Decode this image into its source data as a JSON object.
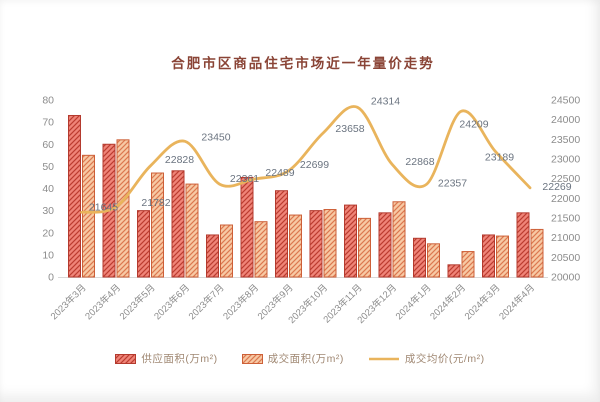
{
  "title": "合肥市区商品住宅市场近一年量价走势",
  "legend": {
    "items": [
      {
        "label": "供应面积(万m²)",
        "swatch": "hatched-bar-red"
      },
      {
        "label": "成交面积(万m²)",
        "swatch": "hatched-bar-orange"
      },
      {
        "label": "成交均价(元/m²)",
        "swatch": "line-gold"
      }
    ]
  },
  "colors": {
    "supply_bg": "#ef8478",
    "supply_hatch": "#bc3c30",
    "supply_stroke": "#b43a2e",
    "transaction_bg": "#f7c9a4",
    "transaction_hatch": "#dc7850",
    "transaction_stroke": "#cd6038",
    "price_line": "#e9b45c",
    "axis_text": "#8c8c8c",
    "point_label": "#6b7480",
    "axis_line": "#d9d9d9",
    "title_text": "#8a4436",
    "legend_text": "#a08873"
  },
  "chart_data": {
    "type": "bar",
    "subtype": "grouped-bars-with-line-overlay",
    "title": "合肥市区商品住宅市场近一年量价走势",
    "categories": [
      "2023年3月",
      "2023年4月",
      "2023年5月",
      "2023年6月",
      "2023年7月",
      "2023年8月",
      "2023年9月",
      "2023年10月",
      "2023年11月",
      "2023年12月",
      "2024年1月",
      "2024年2月",
      "2024年3月",
      "2024年4月"
    ],
    "series": [
      {
        "name": "供应面积(万m²)",
        "type": "bar",
        "axis": "left",
        "values": [
          73,
          60,
          30,
          48,
          19,
          45,
          39,
          30,
          32.5,
          29,
          17.5,
          5.5,
          19,
          29
        ]
      },
      {
        "name": "成交面积(万m²)",
        "type": "bar",
        "axis": "left",
        "values": [
          55,
          62,
          47,
          42,
          23.5,
          25,
          28,
          30.5,
          26.5,
          34,
          15,
          11.5,
          18.5,
          21.5
        ]
      },
      {
        "name": "成交均价(元/m²)",
        "type": "line",
        "axis": "right",
        "values": [
          21645,
          21782,
          22828,
          23450,
          22361,
          22489,
          22699,
          23658,
          24314,
          22868,
          22357,
          24209,
          23189,
          22269
        ],
        "point_labels": [
          "21645",
          "21782",
          "22828",
          "23450",
          "22361",
          "22489",
          "22699",
          "23658",
          "24314",
          "22868",
          "22357",
          "24209",
          "23189",
          "22269"
        ]
      }
    ],
    "left_axis": {
      "min": 0,
      "max": 80,
      "step": 10
    },
    "right_axis": {
      "min": 20000,
      "max": 24500,
      "step": 500
    },
    "grid": "off",
    "legend_position": "bottom"
  }
}
